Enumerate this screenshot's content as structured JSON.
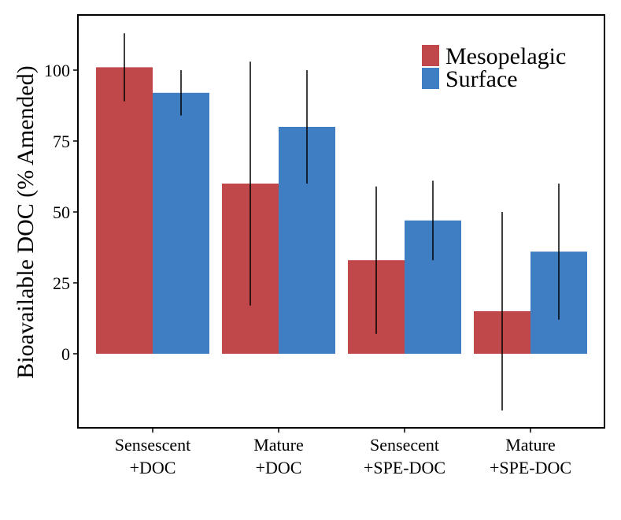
{
  "chart_data": {
    "type": "bar",
    "ylabel": "Bioavailable DOC (% Amended)",
    "xlabel": "",
    "ylim": [
      -28,
      120
    ],
    "yticks": [
      0,
      25,
      50,
      75,
      100
    ],
    "ytick_labels": [
      "0",
      "25",
      "50",
      "75",
      "100"
    ],
    "categories": [
      [
        "Sensescent",
        "+DOC"
      ],
      [
        "Mature",
        "+DOC"
      ],
      [
        "Sensecent",
        "+SPE-DOC"
      ],
      [
        "Mature",
        "+SPE-DOC"
      ]
    ],
    "series": [
      {
        "name": "Mesopelagic",
        "color": "#C0474A",
        "values": [
          101,
          60,
          33,
          15
        ],
        "error_low": [
          89,
          17,
          7,
          -20
        ],
        "error_high": [
          113,
          103,
          59,
          50
        ]
      },
      {
        "name": "Surface",
        "color": "#3F7EC2",
        "values": [
          92,
          80,
          47,
          36
        ],
        "error_low": [
          84,
          60,
          33,
          12
        ],
        "error_high": [
          100,
          100,
          61,
          60
        ]
      }
    ],
    "legend_position": "top-right",
    "grid": false
  }
}
